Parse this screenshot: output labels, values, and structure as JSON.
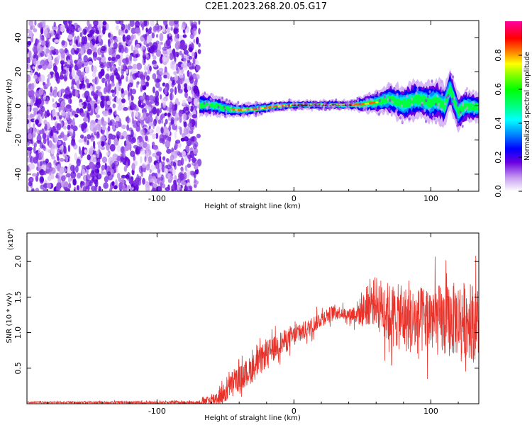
{
  "title": "C2E1.2023.268.20.05.G17",
  "chart_data": [
    {
      "type": "heatmap",
      "xlabel": "Height of straight line (km)",
      "ylabel": "Frequency (Hz)",
      "xlim": [
        -195,
        135
      ],
      "ylim": [
        -50,
        50
      ],
      "xticks": [
        -100,
        0,
        100
      ],
      "yticks": [
        -40,
        -20,
        0,
        20,
        40
      ],
      "colorbar": {
        "label": "Normalized spectral amplitude",
        "range": [
          0,
          1
        ],
        "ticks": [
          "0.0",
          "0.2",
          "0.4",
          "0.6",
          "0.8"
        ]
      },
      "noise_region_x": [
        -195,
        -69
      ],
      "signal_center_hz": [
        [
          -68,
          0.5
        ],
        [
          -60,
          0.5
        ],
        [
          -50,
          -1.5
        ],
        [
          -40,
          -2.5
        ],
        [
          -30,
          -2
        ],
        [
          -20,
          -1
        ],
        [
          -10,
          0
        ],
        [
          0,
          0.5
        ],
        [
          10,
          0.5
        ],
        [
          20,
          0.5
        ],
        [
          30,
          0.5
        ],
        [
          40,
          0.5
        ],
        [
          50,
          1
        ],
        [
          60,
          2
        ],
        [
          70,
          4
        ],
        [
          80,
          1
        ],
        [
          90,
          4
        ],
        [
          100,
          2
        ],
        [
          105,
          3
        ],
        [
          110,
          0
        ],
        [
          114,
          10
        ],
        [
          118,
          1
        ],
        [
          120,
          -4
        ],
        [
          125,
          0
        ],
        [
          135,
          -1
        ]
      ],
      "signal_halfwidth_hz": [
        [
          -68,
          5
        ],
        [
          -40,
          3
        ],
        [
          0,
          2
        ],
        [
          40,
          2
        ],
        [
          60,
          5
        ],
        [
          80,
          8
        ],
        [
          110,
          9
        ],
        [
          135,
          6
        ]
      ]
    },
    {
      "type": "line",
      "xlabel": "Height of straight line (km)",
      "ylabel": "SNR (10 * v/v)",
      "y_multiplier": "(x10⁴)",
      "xlim": [
        -195,
        135
      ],
      "ylim": [
        0,
        2.4
      ],
      "xticks": [
        -100,
        0,
        100
      ],
      "yticks": [
        "0.5",
        "1.0",
        "1.5",
        "2.0"
      ],
      "line_color": "#e8322a",
      "series_envelope": [
        [
          -195,
          0.02
        ],
        [
          -70,
          0.02
        ],
        [
          -60,
          0.05
        ],
        [
          -50,
          0.15
        ],
        [
          -45,
          0.3
        ],
        [
          -40,
          0.35
        ],
        [
          -30,
          0.5
        ],
        [
          -20,
          0.7
        ],
        [
          -10,
          0.85
        ],
        [
          0,
          0.95
        ],
        [
          10,
          1.05
        ],
        [
          20,
          1.2
        ],
        [
          30,
          1.3
        ],
        [
          40,
          1.25
        ],
        [
          50,
          1.3
        ],
        [
          55,
          1.4
        ],
        [
          60,
          1.45
        ],
        [
          70,
          1.25
        ],
        [
          80,
          1.2
        ],
        [
          90,
          1.15
        ],
        [
          100,
          1.2
        ],
        [
          110,
          1.15
        ],
        [
          120,
          1.2
        ],
        [
          135,
          1.15
        ]
      ],
      "series_noise_amplitude": [
        [
          -195,
          0.01
        ],
        [
          -70,
          0.02
        ],
        [
          -50,
          0.15
        ],
        [
          -30,
          0.2
        ],
        [
          0,
          0.15
        ],
        [
          40,
          0.08
        ],
        [
          55,
          0.3
        ],
        [
          70,
          0.45
        ],
        [
          100,
          0.5
        ],
        [
          135,
          0.55
        ]
      ]
    }
  ]
}
